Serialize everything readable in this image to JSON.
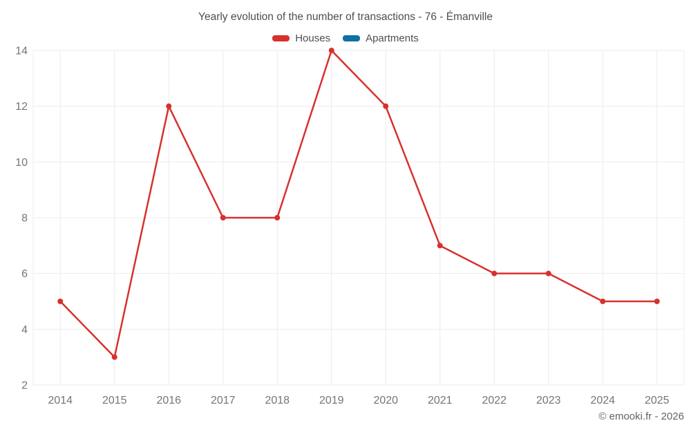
{
  "page": {
    "title": "Yearly evolution of the number of transactions - 76 - Émanville",
    "footer": "© emooki.fr - 2026"
  },
  "chart_data": {
    "type": "line",
    "title": "Yearly evolution of the number of transactions - 76 - Émanville",
    "categories": [
      "2014",
      "2015",
      "2016",
      "2017",
      "2018",
      "2019",
      "2020",
      "2021",
      "2022",
      "2023",
      "2024",
      "2025"
    ],
    "series": [
      {
        "name": "Houses",
        "color": "#d7312c",
        "values": [
          5,
          3,
          12,
          8,
          8,
          14,
          12,
          7,
          6,
          6,
          5,
          5
        ]
      },
      {
        "name": "Apartments",
        "color": "#0e72a3",
        "values": []
      }
    ],
    "xlabel": "",
    "ylabel": "",
    "ylim": [
      2,
      14
    ],
    "yticks": [
      2,
      4,
      6,
      8,
      10,
      12,
      14
    ],
    "grid": true,
    "legend_position": "top",
    "point_radius": 4,
    "line_width": 2.5
  },
  "colors": {
    "background": "#ffffff",
    "grid": "#ececec",
    "tick_text": "#757575",
    "title_text": "#4e4e4e",
    "footer_text": "#636363"
  }
}
